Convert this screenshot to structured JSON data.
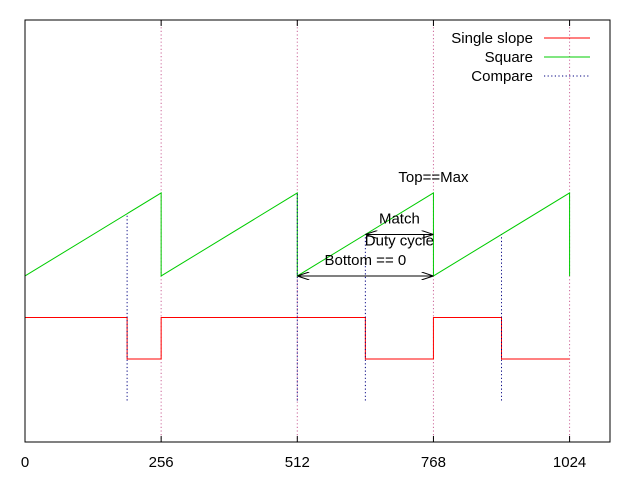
{
  "chart_data": {
    "type": "line",
    "title": "",
    "xlabel": "",
    "ylabel": "",
    "xlim": [
      0,
      1100
    ],
    "ylim": [
      -0.3,
      2.75
    ],
    "x_ticks": [
      {
        "value": 0,
        "label": "0"
      },
      {
        "value": 256,
        "label": "256"
      },
      {
        "value": 512,
        "label": "512"
      },
      {
        "value": 768,
        "label": "768"
      },
      {
        "value": 1024,
        "label": "1024"
      }
    ],
    "grid": false,
    "legend_placement": "top-right",
    "series": [
      {
        "name": "Single slope",
        "color": "#ff0000",
        "style": "solid",
        "points": [
          [
            0,
            0.6
          ],
          [
            192,
            0.6
          ],
          [
            192,
            0.3
          ],
          [
            256,
            0.3
          ],
          [
            256,
            0.6
          ],
          [
            640,
            0.6
          ],
          [
            640,
            0.3
          ],
          [
            768,
            0.3
          ],
          [
            768,
            0.6
          ],
          [
            896,
            0.6
          ],
          [
            896,
            0.3
          ],
          [
            1024,
            0.3
          ]
        ]
      },
      {
        "name": "Square",
        "color": "#00cc00",
        "style": "solid",
        "points": [
          [
            0,
            0.9
          ],
          [
            256,
            1.5
          ],
          [
            256,
            0.9
          ],
          [
            512,
            1.5
          ],
          [
            512,
            0.9
          ],
          [
            768,
            1.5
          ],
          [
            768,
            0.9
          ],
          [
            1024,
            1.5
          ],
          [
            1024,
            0.9
          ]
        ]
      },
      {
        "name": "Compare",
        "color": "#000080",
        "style": "dotted",
        "segments": [
          [
            [
              192,
              0
            ],
            [
              192,
              1.35
            ]
          ],
          [
            [
              512,
              0
            ],
            [
              512,
              1.5
            ]
          ],
          [
            [
              640,
              0
            ],
            [
              640,
              1.2
            ]
          ],
          [
            [
              896,
              0
            ],
            [
              896,
              1.2
            ]
          ]
        ]
      }
    ],
    "reference_lines": {
      "color": "#cc6699",
      "style": "dotted",
      "x_values": [
        256,
        512,
        768,
        1024
      ]
    },
    "annotations": [
      {
        "text": "Top==Max",
        "x": 768,
        "y": 1.58
      },
      {
        "text": "Match",
        "x": 704,
        "y": 1.28
      },
      {
        "text": "Duty cycle",
        "x": 704,
        "y": 1.12
      },
      {
        "text": "Bottom == 0",
        "x": 640,
        "y": 0.98
      }
    ],
    "arrows": [
      {
        "from": [
          640,
          1.2
        ],
        "to": [
          768,
          1.2
        ]
      },
      {
        "from": [
          512,
          0.9
        ],
        "to": [
          768,
          0.9
        ]
      }
    ]
  }
}
